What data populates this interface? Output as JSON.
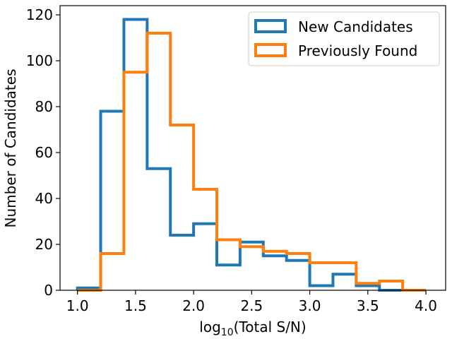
{
  "chart_data": {
    "type": "histogram",
    "xlabel_main": "log",
    "xlabel_sub": "10",
    "xlabel_rest": "(Total S/N)",
    "ylabel": "Number of Candidates",
    "xlim": [
      0.85,
      4.17
    ],
    "ylim": [
      0,
      124
    ],
    "xticks": [
      1.0,
      1.5,
      2.0,
      2.5,
      3.0,
      3.5,
      4.0
    ],
    "xtick_labels": [
      "1.0",
      "1.5",
      "2.0",
      "2.5",
      "3.0",
      "3.5",
      "4.0"
    ],
    "yticks": [
      0,
      20,
      40,
      60,
      80,
      100,
      120
    ],
    "ytick_labels": [
      "0",
      "20",
      "40",
      "60",
      "80",
      "100",
      "120"
    ],
    "bin_edges": [
      1.0,
      1.2,
      1.4,
      1.6,
      1.8,
      2.0,
      2.2,
      2.4,
      2.6,
      2.8,
      3.0,
      3.2,
      3.4,
      3.6,
      3.8,
      4.0
    ],
    "grid": false,
    "legend_position": "top-right",
    "series": [
      {
        "name": "New Candidates",
        "color": "#1f77b4",
        "values": [
          1,
          78,
          118,
          53,
          24,
          29,
          11,
          21,
          15,
          13,
          2,
          7,
          2,
          0,
          0
        ]
      },
      {
        "name": "Previously Found",
        "color": "#ff7f0e",
        "values": [
          0,
          16,
          95,
          112,
          72,
          44,
          22,
          19,
          17,
          16,
          12,
          12,
          3,
          4,
          0
        ]
      }
    ]
  }
}
